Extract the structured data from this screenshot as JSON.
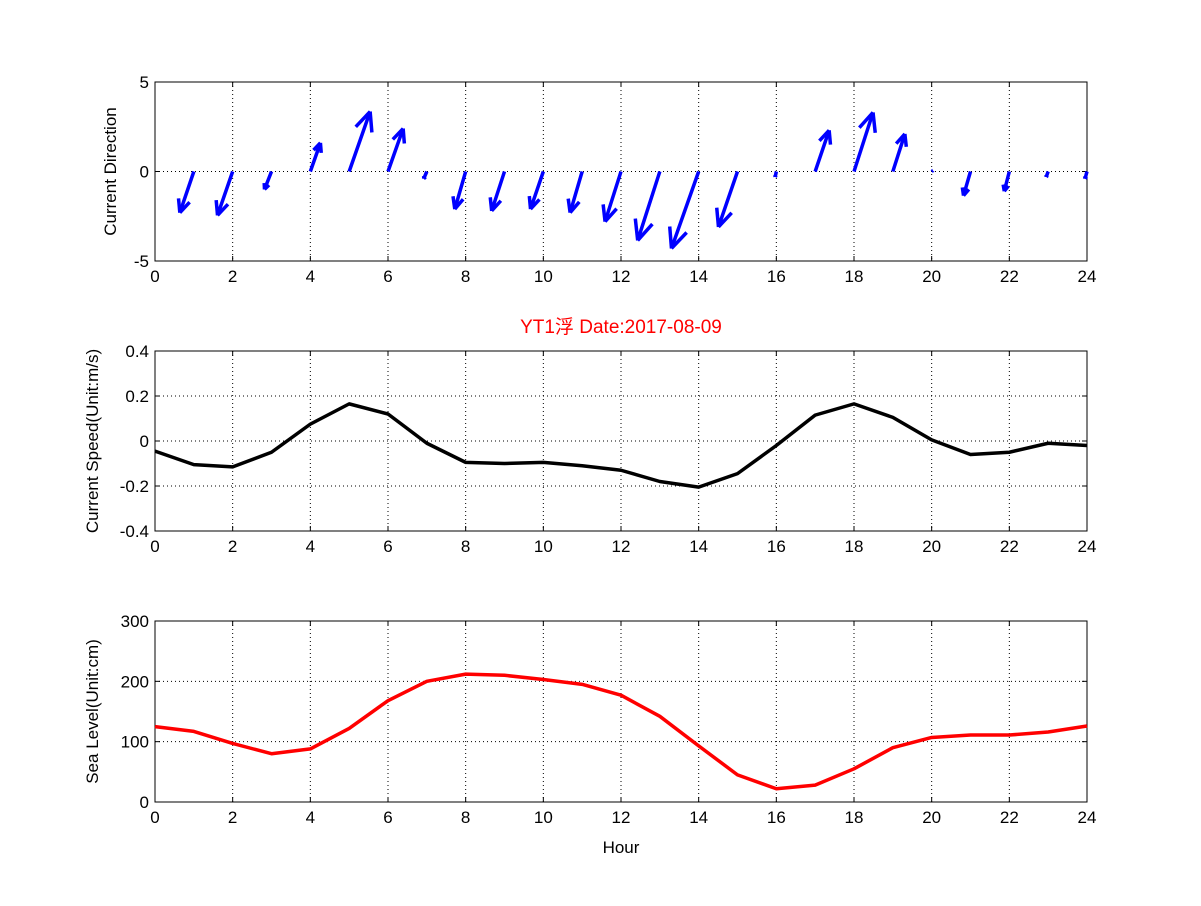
{
  "title": "YT1浮    Date:2017-08-09",
  "colors": {
    "title": "#ff0000",
    "direction": "#0000ff",
    "speed": "#000000",
    "sea_level": "#ff0000"
  },
  "chart_data": [
    {
      "type": "quiver",
      "ylabel": "Current Direction",
      "xlabel": "",
      "xlim": [
        0,
        24
      ],
      "ylim": [
        -5,
        5
      ],
      "xticks": [
        0,
        2,
        4,
        6,
        8,
        10,
        12,
        14,
        16,
        18,
        20,
        22,
        24
      ],
      "yticks": [
        -5,
        0,
        5
      ],
      "grid": true,
      "x": [
        1,
        2,
        3,
        4,
        5,
        6,
        7,
        8,
        9,
        10,
        11,
        12,
        13,
        14,
        15,
        16,
        17,
        18,
        19,
        20,
        21,
        22,
        23,
        24
      ],
      "u": [
        -0.36,
        -0.39,
        -0.18,
        0.26,
        0.54,
        0.39,
        -0.08,
        -0.28,
        -0.33,
        -0.33,
        -0.31,
        -0.41,
        -0.57,
        -0.7,
        -0.49,
        -0.03,
        0.36,
        0.49,
        0.31,
        0.03,
        -0.18,
        -0.13,
        -0.05,
        -0.05
      ],
      "v": [
        -2.3,
        -2.45,
        -1.0,
        1.6,
        3.35,
        2.4,
        -0.4,
        -2.1,
        -2.2,
        -2.1,
        -2.3,
        -2.8,
        -3.85,
        -4.3,
        -3.1,
        -0.3,
        2.3,
        3.3,
        2.1,
        0.05,
        -1.35,
        -1.1,
        -0.3,
        -0.4
      ]
    },
    {
      "type": "line",
      "ylabel": "Current Speed(Unit:m/s)",
      "xlabel": "",
      "xlim": [
        0,
        24
      ],
      "ylim": [
        -0.4,
        0.4
      ],
      "xticks": [
        0,
        2,
        4,
        6,
        8,
        10,
        12,
        14,
        16,
        18,
        20,
        22,
        24
      ],
      "yticks": [
        -0.4,
        -0.2,
        0,
        0.2,
        0.4
      ],
      "ytick_labels": [
        "-0.4",
        "-0.2",
        "0",
        "0.2",
        "0.4"
      ],
      "grid": true,
      "x": [
        0,
        1,
        2,
        3,
        4,
        5,
        6,
        7,
        8,
        9,
        10,
        11,
        12,
        13,
        14,
        15,
        16,
        17,
        18,
        19,
        20,
        21,
        22,
        23,
        24
      ],
      "y": [
        -0.045,
        -0.105,
        -0.115,
        -0.05,
        0.075,
        0.165,
        0.12,
        -0.01,
        -0.095,
        -0.1,
        -0.095,
        -0.11,
        -0.13,
        -0.18,
        -0.205,
        -0.145,
        -0.02,
        0.115,
        0.165,
        0.105,
        0.005,
        -0.06,
        -0.05,
        -0.01,
        -0.02
      ]
    },
    {
      "type": "line",
      "ylabel": "Sea Level(Unit:cm)",
      "xlabel": "Hour",
      "xlim": [
        0,
        24
      ],
      "ylim": [
        0,
        300
      ],
      "xticks": [
        0,
        2,
        4,
        6,
        8,
        10,
        12,
        14,
        16,
        18,
        20,
        22,
        24
      ],
      "yticks": [
        0,
        100,
        200,
        300
      ],
      "grid": true,
      "x": [
        0,
        1,
        2,
        3,
        4,
        5,
        6,
        7,
        8,
        9,
        10,
        11,
        12,
        13,
        14,
        15,
        16,
        17,
        18,
        19,
        20,
        21,
        22,
        23,
        24
      ],
      "y": [
        125,
        117,
        97,
        80,
        88,
        122,
        168,
        200,
        212,
        210,
        203,
        195,
        177,
        142,
        93,
        45,
        22,
        28,
        55,
        90,
        107,
        111,
        111,
        116,
        126
      ]
    }
  ]
}
